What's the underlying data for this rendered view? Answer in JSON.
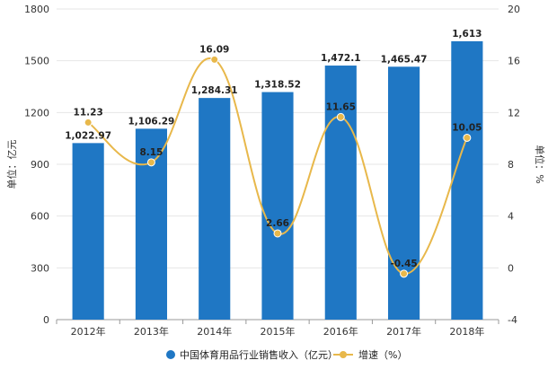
{
  "chart_data": {
    "type": "bar",
    "categories": [
      "2012年",
      "2013年",
      "2014年",
      "2015年",
      "2016年",
      "2017年",
      "2018年"
    ],
    "series": [
      {
        "name": "中国体育用品行业销售收入（亿元）",
        "kind": "bar",
        "axis": "left",
        "color": "#1f77c4",
        "values": [
          1022.97,
          1106.29,
          1284.31,
          1318.52,
          1472.1,
          1465.47,
          1613
        ],
        "labels": [
          "1,022.97",
          "1,106.29",
          "1,284.31",
          "1,318.52",
          "1,472.1",
          "1,465.47",
          "1,613"
        ]
      },
      {
        "name": "增速（%）",
        "kind": "line",
        "axis": "right",
        "color": "#e8b84b",
        "values": [
          11.23,
          8.15,
          16.09,
          2.66,
          11.65,
          -0.45,
          10.05
        ],
        "labels": [
          "11.23",
          "8.15",
          "16.09",
          "2.66",
          "11.65",
          "-0.45",
          "10.05"
        ]
      }
    ],
    "y_left": {
      "label": "单位：亿元",
      "ylim": [
        0,
        1800
      ],
      "ticks": [
        "0",
        "300",
        "600",
        "900",
        "1200",
        "1500",
        "1800"
      ]
    },
    "y_right": {
      "label": "单位：%",
      "ylim": [
        -4,
        20
      ],
      "ticks": [
        "-4",
        "0",
        "4",
        "8",
        "12",
        "16",
        "20"
      ]
    },
    "grid": true,
    "legend_position": "bottom"
  }
}
